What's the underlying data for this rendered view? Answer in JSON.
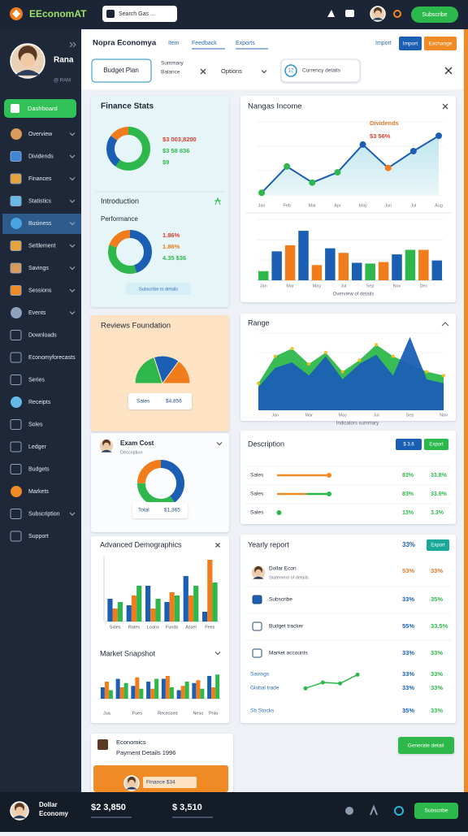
{
  "topbar": {
    "logo": "EEconomAT",
    "search": "Search Gas ...",
    "button": "Subscribe"
  },
  "sidebar": {
    "name": "Rana",
    "handle": "@ RAM",
    "primary": "Dashboard",
    "active": 4,
    "items": [
      "Overview",
      "Dividends",
      "Finances",
      "Statistics",
      "Business",
      "Settlement",
      "Savings",
      "Sessions",
      "Events",
      "Downloads",
      "Economyforecasts",
      "Series",
      "Receipts",
      "Soles",
      "Ledger",
      "Budgets",
      "Markets",
      "Subscription",
      "Support"
    ]
  },
  "header": {
    "tabs": [
      "Nopra Economya",
      "Item",
      "Feedback",
      "Exports"
    ],
    "buttons": [
      "Import",
      "Exchange"
    ],
    "filter": "Budget Plan",
    "summary": [
      "Summary",
      "Balance"
    ],
    "options": "Options",
    "currency_badge": "12",
    "currency": "Currency details"
  },
  "finance_stats": {
    "title": "Finance Stats",
    "donut": {
      "type": "donut",
      "values": [
        60,
        25,
        15
      ],
      "colors": [
        "#2eb84b",
        "#1b5fb5",
        "#f07c1b"
      ]
    },
    "lines": [
      "$3 003,8200",
      "$3 58 836",
      "$9"
    ],
    "section": "Introduction",
    "subtitle": "Performance",
    "donut2": {
      "type": "donut",
      "values": [
        45,
        35,
        20
      ],
      "colors": [
        "#1b5fb5",
        "#2eb84b",
        "#f07c1b"
      ]
    },
    "lines2": [
      "1.86%",
      "1.86%",
      "4.35 $36"
    ],
    "button": "Subscribe to details"
  },
  "income_chart": {
    "type": "line",
    "title": "Nangas Income",
    "annotation": "Dividends",
    "annotation2": "$3 56%",
    "categories": [
      "Jan",
      "Feb",
      "Mar",
      "Apr",
      "May",
      "Jun",
      "Jul",
      "Aug"
    ],
    "values": [
      3,
      39,
      17,
      31,
      69,
      37,
      60,
      81
    ],
    "color": "#1b5fb5",
    "point_colors": [
      "#2eb84b",
      "#2eb84b",
      "#2eb84b",
      "#2eb84b",
      "#1b5fb5",
      "#f07c1b",
      "#1b5fb5",
      "#1b5fb5"
    ],
    "ylim": [
      0,
      100
    ]
  },
  "bars_chart": {
    "type": "bar",
    "x_label": "Overview of details",
    "categories": [
      "Jan",
      null,
      "Mar",
      null,
      "May",
      null,
      "Jul",
      null,
      "Sep",
      null,
      "Nov",
      null,
      "Dec",
      null
    ],
    "values": [
      12,
      38,
      46,
      65,
      20,
      42,
      36,
      23,
      22,
      24,
      34,
      40,
      40,
      26
    ],
    "colors": [
      "#2eb84b",
      "#1b5fb5",
      "#f07c1b",
      "#1b5fb5",
      "#f07c1b",
      "#1b5fb5",
      "#f07c1b",
      "#1b5fb5",
      "#2eb84b",
      "#f07c1b",
      "#1b5fb5",
      "#2eb84b",
      "#f07c1b",
      "#1b5fb5"
    ],
    "ylim": [
      0,
      80
    ]
  },
  "reviews": {
    "type": "half-pie",
    "title": "Reviews Foundation",
    "values": [
      40,
      30,
      30
    ],
    "colors": [
      "#2eb84b",
      "#1b5fb5",
      "#f07c1b"
    ],
    "label": [
      "Sales",
      "$4,856"
    ]
  },
  "range_chart": {
    "type": "area",
    "title": "Range",
    "x_label": "Indicators summary",
    "categories": [
      null,
      "Jan",
      null,
      "Mar",
      null,
      "May",
      null,
      "Jul",
      null,
      "Sep",
      null,
      "Nov"
    ],
    "series": [
      {
        "color": "#2eb84b",
        "values": [
          35,
          70,
          80,
          60,
          75,
          50,
          65,
          85,
          70,
          60,
          50,
          45
        ]
      },
      {
        "color": "#1b5fb5",
        "values": [
          30,
          55,
          62,
          45,
          70,
          40,
          60,
          72,
          45,
          95,
          40,
          35
        ]
      }
    ],
    "ylim": [
      0,
      100
    ]
  },
  "exam": {
    "title": "Exam Cost",
    "subtitle": "Description",
    "donut": {
      "type": "donut",
      "values": [
        40,
        35,
        25
      ],
      "colors": [
        "#1b5fb5",
        "#2eb84b",
        "#f07c1b"
      ]
    },
    "label": [
      "Total",
      "$1,365"
    ]
  },
  "description": {
    "title": "Description",
    "buttons": [
      "$ 3.6",
      "Export"
    ],
    "progress_max": 100,
    "rows": [
      {
        "label": "Sales",
        "progress": [
          80
        ],
        "colors": [
          "#f08a24"
        ],
        "pct": [
          "83%",
          "33.8%"
        ]
      },
      {
        "label": "Sales",
        "progress": [
          45,
          80
        ],
        "colors": [
          "#f08a24",
          "#2eb84b"
        ],
        "pct": [
          "83%",
          "33.9%"
        ]
      },
      {
        "label": "Sales",
        "progress": [
          3
        ],
        "colors": [
          "#2eb84b"
        ],
        "pct": [
          "13%",
          "3.3%"
        ]
      }
    ]
  },
  "demographics": {
    "type": "grouped-bar",
    "title": "Advanced Demographics",
    "categories": [
      "Sales",
      "Rates",
      "Loans",
      "Funds",
      "Asset",
      "Fees"
    ],
    "series": [
      {
        "color": "#1b5fb5",
        "values": [
          35,
          25,
          55,
          30,
          70,
          15
        ]
      },
      {
        "color": "#f07c1b",
        "values": [
          20,
          40,
          20,
          45,
          40,
          95
        ]
      },
      {
        "color": "#2eb84b",
        "values": [
          30,
          55,
          35,
          40,
          55,
          60
        ]
      }
    ],
    "ylim": [
      0,
      100
    ]
  },
  "snapshot": {
    "type": "grouped-bar",
    "title": "Market Snapshot",
    "categories": [
      "Jua",
      null,
      "Fues",
      null,
      "Recessed",
      null,
      "Neso",
      "Pnia"
    ],
    "series": [
      {
        "color": "#1b5fb5",
        "values": [
          40,
          70,
          45,
          60,
          70,
          30,
          55,
          80
        ]
      },
      {
        "color": "#f07c1b",
        "values": [
          60,
          40,
          75,
          35,
          80,
          45,
          65,
          40
        ]
      },
      {
        "color": "#2eb84b",
        "values": [
          30,
          55,
          35,
          70,
          40,
          60,
          35,
          85
        ]
      }
    ],
    "ylim": [
      0,
      100
    ]
  },
  "yearly": {
    "title": "Yearly report",
    "badge_pct": "33%",
    "badge": "Export",
    "rows": [
      {
        "label": "Dollar Econ",
        "sub": "Statement of details",
        "pct": [
          "53%",
          "33%"
        ]
      },
      {
        "label": "Subscribe",
        "pct": [
          "33%",
          "35%"
        ]
      },
      {
        "label": "Budget tracker",
        "pct": [
          "55%",
          "33.5%"
        ]
      },
      {
        "label": "Market accounts",
        "pct": [
          "33%",
          "33%"
        ]
      },
      {
        "label": "Savings",
        "pct": [
          "33%",
          "33%"
        ]
      },
      {
        "label": "Global trade",
        "pct": [
          "33%",
          "33%"
        ]
      },
      {
        "label": "Sb Stocks",
        "pct": [
          "35%",
          "33%"
        ]
      }
    ],
    "trend": {
      "type": "line",
      "values": [
        20,
        50,
        45,
        90
      ],
      "color": "#2eb84b",
      "ylim": [
        0,
        100
      ]
    }
  },
  "economics": {
    "title": "Economics",
    "subtitle": "Payment Details 1996",
    "banner": "Finance $34"
  },
  "action": "Generate detail",
  "footer": {
    "name": "Dollar",
    "sub": "Economy",
    "stats": [
      "$2 3,850",
      "$ 3,510"
    ],
    "button": "Subscribe"
  }
}
